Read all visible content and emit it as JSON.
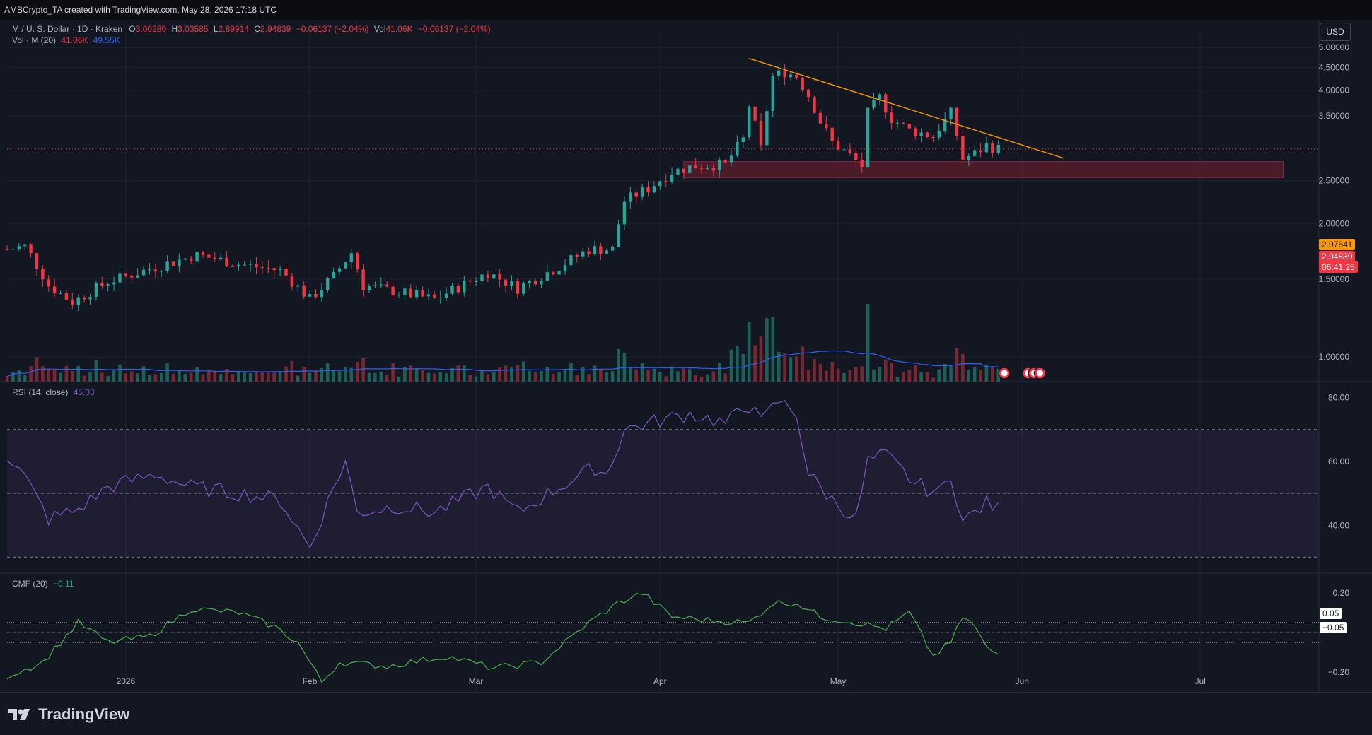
{
  "header": {
    "credit": "AMBCrypto_TA created with TradingView.com, May 28, 2026 17:18 UTC"
  },
  "legend": {
    "symbol": "M / U. S. Dollar · 1D · Kraken",
    "o_label": "O",
    "o_value": "3.00280",
    "h_label": "H",
    "h_value": "3.03585",
    "l_label": "L",
    "l_value": "2.89914",
    "c_label": "C",
    "c_value": "2.94839",
    "change": "−0.06137 (−2.04%)",
    "vol_label": "Vol",
    "vol_value": "41.06K",
    "vol_change": "−0.06137 (−2.04%)",
    "volma_label": "Vol · M (20)",
    "vol_current": "41.06K",
    "vol_ma": "49.55K"
  },
  "currency_button": "USD",
  "price_badges": {
    "level_value": "2.97641",
    "last_value": "2.94839",
    "countdown": "06:41:25"
  },
  "rsi": {
    "label": "RSI (14, close)",
    "value": "45.03",
    "ticks": [
      "80.00",
      "60.00",
      "40.00"
    ]
  },
  "cmf": {
    "label": "CMF (20)",
    "value": "−0.11",
    "ticks": [
      "0.20",
      "−0.20"
    ],
    "badge_pos": "0.05",
    "badge_neg": "−0.05"
  },
  "price_ticks": [
    "5.00000",
    "4.50000",
    "4.00000",
    "3.50000",
    "2.50000",
    "2.00000",
    "1.50000",
    "1.00000"
  ],
  "time_ticks": [
    "2026",
    "Feb",
    "Mar",
    "Apr",
    "May",
    "Jun",
    "Jul"
  ],
  "brand": {
    "name": "TradingView"
  },
  "colors": {
    "up": "#26a69a",
    "down": "#f23645",
    "trendline": "#ff9800",
    "zone": "#6b1d2e",
    "ma": "#2962ff",
    "rsi": "#7e57c2",
    "cmf": "#4caf50"
  },
  "chart_data": {
    "type": "candlestick",
    "scale": "log",
    "ylim": [
      0.88,
      5.4
    ],
    "x_start": "2025-12-12",
    "x_end": "2026-07-21",
    "candles": [],
    "anchors": [
      [
        "2025-12-12",
        1.75
      ],
      [
        "2025-12-15",
        1.78
      ],
      [
        "2025-12-19",
        1.45
      ],
      [
        "2025-12-23",
        1.33
      ],
      [
        "2025-12-29",
        1.48
      ],
      [
        "2026-01-05",
        1.58
      ],
      [
        "2026-01-13",
        1.7
      ],
      [
        "2026-01-20",
        1.62
      ],
      [
        "2026-01-27",
        1.57
      ],
      [
        "2026-02-01",
        1.35
      ],
      [
        "2026-02-05",
        1.52
      ],
      [
        "2026-02-08",
        1.72
      ],
      [
        "2026-02-10",
        1.45
      ],
      [
        "2026-02-16",
        1.4
      ],
      [
        "2026-02-22",
        1.35
      ],
      [
        "2026-03-03",
        1.55
      ],
      [
        "2026-03-08",
        1.43
      ],
      [
        "2026-03-15",
        1.6
      ],
      [
        "2026-03-20",
        1.75
      ],
      [
        "2026-03-24",
        1.75
      ],
      [
        "2026-03-26",
        2.25
      ],
      [
        "2026-03-30",
        2.4
      ],
      [
        "2026-04-03",
        2.62
      ],
      [
        "2026-04-07",
        2.7
      ],
      [
        "2026-04-12",
        2.72
      ],
      [
        "2026-04-15",
        3.1
      ],
      [
        "2026-04-16",
        3.7
      ],
      [
        "2026-04-18",
        2.95
      ],
      [
        "2026-04-20",
        4.3
      ],
      [
        "2026-04-22",
        4.4
      ],
      [
        "2026-04-24",
        4.3
      ],
      [
        "2026-04-26",
        3.9
      ],
      [
        "2026-04-28",
        3.4
      ],
      [
        "2026-04-30",
        3.05
      ],
      [
        "2026-05-03",
        2.85
      ],
      [
        "2026-05-05",
        2.7
      ],
      [
        "2026-05-06",
        3.55
      ],
      [
        "2026-05-08",
        3.85
      ],
      [
        "2026-05-10",
        3.45
      ],
      [
        "2026-05-13",
        3.25
      ],
      [
        "2026-05-17",
        3.15
      ],
      [
        "2026-05-20",
        3.55
      ],
      [
        "2026-05-22",
        2.8
      ],
      [
        "2026-05-24",
        2.88
      ],
      [
        "2026-05-26",
        3.0
      ],
      [
        "2026-05-28",
        2.94839
      ]
    ],
    "trendline": [
      [
        "2026-04-16",
        4.72
      ],
      [
        "2026-06-08",
        2.81
      ]
    ],
    "zone": {
      "from": "2026-04-05",
      "to": "2026-07-15",
      "low": 2.54,
      "high": 2.76
    },
    "rsi_ylim": [
      25,
      85
    ],
    "rsi_band": [
      30,
      70
    ],
    "rsi_anchors": [
      [
        "2025-12-12",
        62
      ],
      [
        "2025-12-15",
        55
      ],
      [
        "2025-12-19",
        42
      ],
      [
        "2025-12-24",
        45
      ],
      [
        "2025-12-29",
        52
      ],
      [
        "2026-01-06",
        56
      ],
      [
        "2026-01-12",
        52
      ],
      [
        "2026-01-20",
        50
      ],
      [
        "2026-01-27",
        48
      ],
      [
        "2026-02-01",
        33
      ],
      [
        "2026-02-05",
        52
      ],
      [
        "2026-02-07",
        60
      ],
      [
        "2026-02-09",
        44
      ],
      [
        "2026-02-16",
        46
      ],
      [
        "2026-02-22",
        44
      ],
      [
        "2026-03-03",
        52
      ],
      [
        "2026-03-08",
        44
      ],
      [
        "2026-03-15",
        52
      ],
      [
        "2026-03-21",
        58
      ],
      [
        "2026-03-23",
        56
      ],
      [
        "2026-03-26",
        70
      ],
      [
        "2026-03-30",
        72
      ],
      [
        "2026-04-06",
        75
      ],
      [
        "2026-04-12",
        72
      ],
      [
        "2026-04-15",
        76
      ],
      [
        "2026-04-17",
        79
      ],
      [
        "2026-04-18",
        72
      ],
      [
        "2026-04-21",
        79
      ],
      [
        "2026-04-24",
        75
      ],
      [
        "2026-04-26",
        56
      ],
      [
        "2026-04-30",
        48
      ],
      [
        "2026-05-04",
        42
      ],
      [
        "2026-05-06",
        60
      ],
      [
        "2026-05-09",
        62
      ],
      [
        "2026-05-14",
        53
      ],
      [
        "2026-05-18",
        50
      ],
      [
        "2026-05-20",
        56
      ],
      [
        "2026-05-22",
        41
      ],
      [
        "2026-05-24",
        44
      ],
      [
        "2026-05-26",
        47
      ],
      [
        "2026-05-28",
        45.03
      ]
    ],
    "cmf_ylim": [
      -0.3,
      0.3
    ],
    "cmf_anchors": [
      [
        "2025-12-12",
        -0.22
      ],
      [
        "2025-12-18",
        -0.15
      ],
      [
        "2025-12-24",
        0.05
      ],
      [
        "2025-12-29",
        -0.05
      ],
      [
        "2026-01-05",
        -0.02
      ],
      [
        "2026-01-12",
        0.12
      ],
      [
        "2026-01-20",
        0.1
      ],
      [
        "2026-01-26",
        0.03
      ],
      [
        "2026-01-30",
        -0.05
      ],
      [
        "2026-02-03",
        -0.25
      ],
      [
        "2026-02-06",
        -0.15
      ],
      [
        "2026-02-14",
        -0.17
      ],
      [
        "2026-02-24",
        -0.12
      ],
      [
        "2026-03-04",
        -0.18
      ],
      [
        "2026-03-12",
        -0.15
      ],
      [
        "2026-03-20",
        0.05
      ],
      [
        "2026-03-25",
        0.15
      ],
      [
        "2026-03-29",
        0.2
      ],
      [
        "2026-04-03",
        0.08
      ],
      [
        "2026-04-10",
        0.06
      ],
      [
        "2026-04-16",
        0.05
      ],
      [
        "2026-04-20",
        0.15
      ],
      [
        "2026-04-24",
        0.15
      ],
      [
        "2026-04-28",
        0.08
      ],
      [
        "2026-05-04",
        0.05
      ],
      [
        "2026-05-09",
        0.02
      ],
      [
        "2026-05-13",
        0.1
      ],
      [
        "2026-05-17",
        -0.12
      ],
      [
        "2026-05-20",
        -0.05
      ],
      [
        "2026-05-22",
        0.08
      ],
      [
        "2026-05-24",
        0.03
      ],
      [
        "2026-05-26",
        -0.08
      ],
      [
        "2026-05-28",
        -0.11
      ]
    ]
  }
}
